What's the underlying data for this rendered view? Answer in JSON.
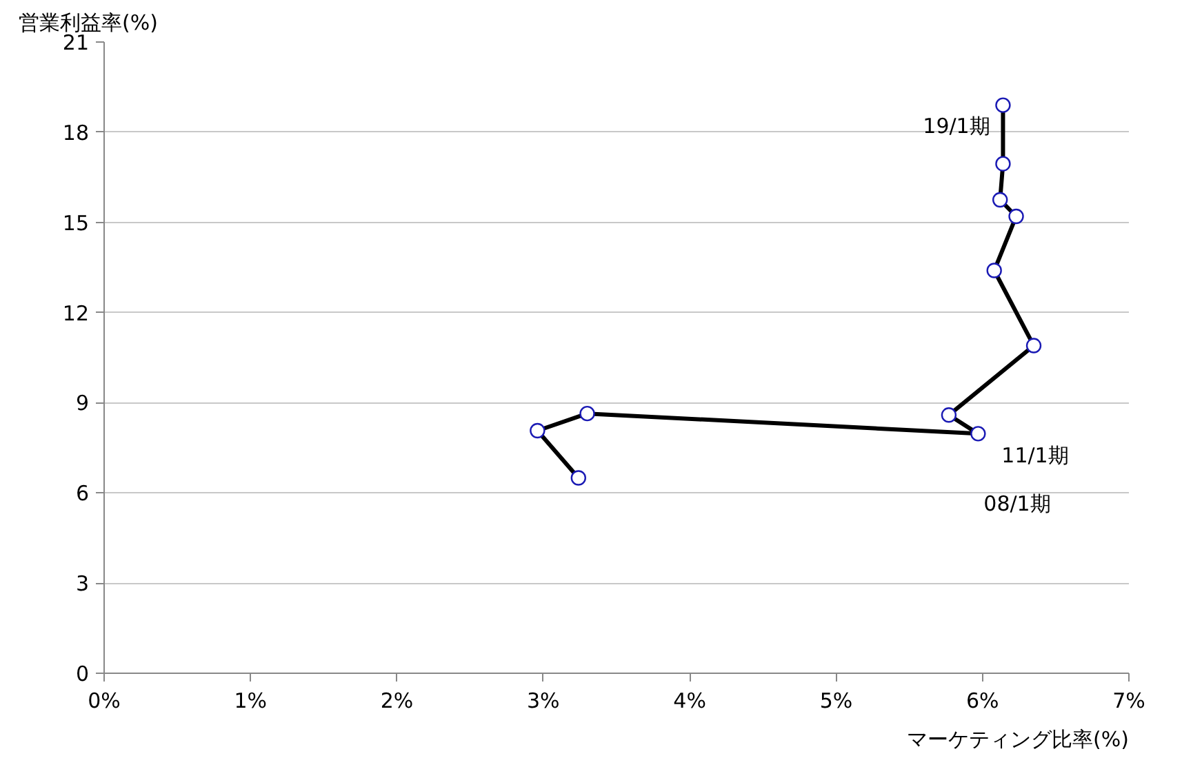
{
  "chart_data": {
    "type": "line",
    "ylabel": "営業利益率(%)",
    "xlabel": "マーケティング比率(%)",
    "x": [
      3.24,
      2.96,
      3.3,
      5.97,
      5.77,
      6.35,
      6.08,
      6.23,
      6.12,
      6.14,
      6.14
    ],
    "series": [
      {
        "color": "#000000",
        "values": [
          6.5,
          8.07,
          8.64,
          7.97,
          8.59,
          10.9,
          13.4,
          15.2,
          15.75,
          16.95,
          18.9
        ]
      }
    ],
    "marker": "circle",
    "line_style": "solid",
    "grid": "y",
    "xlim": [
      0,
      7
    ],
    "ylim": [
      0,
      21
    ],
    "xticks": [
      {
        "value": 0,
        "label": "0%"
      },
      {
        "value": 1,
        "label": "1%"
      },
      {
        "value": 2,
        "label": "2%"
      },
      {
        "value": 3,
        "label": "3%"
      },
      {
        "value": 4,
        "label": "4%"
      },
      {
        "value": 5,
        "label": "5%"
      },
      {
        "value": 6,
        "label": "6%"
      },
      {
        "value": 7,
        "label": "7%"
      }
    ],
    "yticks": [
      0,
      3,
      6,
      9,
      12,
      15,
      18,
      21
    ],
    "annotations": [
      "19/1期",
      "11/1期",
      "08/1期"
    ]
  }
}
